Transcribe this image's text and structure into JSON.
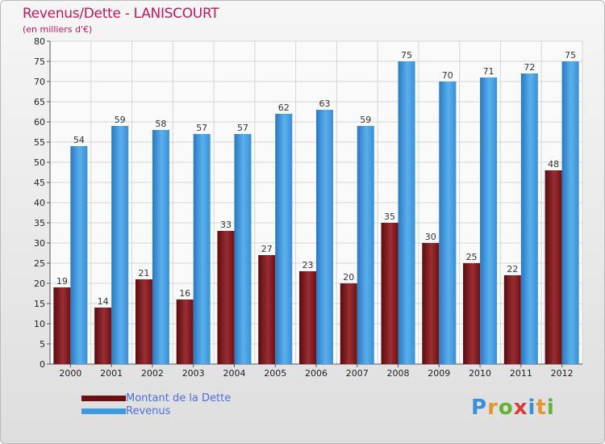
{
  "header": {
    "title": "Revenus/Dette - LANISCOURT",
    "subtitle": "(en milliers d'€)"
  },
  "chart_data": {
    "type": "bar",
    "title": "Revenus/Dette - LANISCOURT",
    "subtitle": "(en milliers d'€)",
    "xlabel": "",
    "ylabel": "",
    "ylim": [
      0,
      80
    ],
    "ytick_step": 5,
    "grid": true,
    "legend_position": "bottom-left",
    "categories": [
      "2000",
      "2001",
      "2002",
      "2003",
      "2004",
      "2005",
      "2006",
      "2007",
      "2008",
      "2009",
      "2010",
      "2011",
      "2012"
    ],
    "series": [
      {
        "name": "Montant de la Dette",
        "color": "#7a1f24",
        "values": [
          19,
          14,
          21,
          16,
          33,
          27,
          23,
          20,
          35,
          30,
          25,
          22,
          48
        ]
      },
      {
        "name": "Revenus",
        "color": "#3c9ae0",
        "values": [
          54,
          59,
          58,
          57,
          57,
          62,
          63,
          59,
          75,
          70,
          71,
          72,
          75
        ]
      }
    ]
  },
  "legend": {
    "items": [
      {
        "label": "Montant de la Dette",
        "color": "#6b0f12"
      },
      {
        "label": "Revenus",
        "color": "#3c9ae0"
      }
    ]
  },
  "logo": {
    "letters": [
      "P",
      "r",
      "o",
      "x",
      "i",
      "t",
      "i"
    ]
  }
}
